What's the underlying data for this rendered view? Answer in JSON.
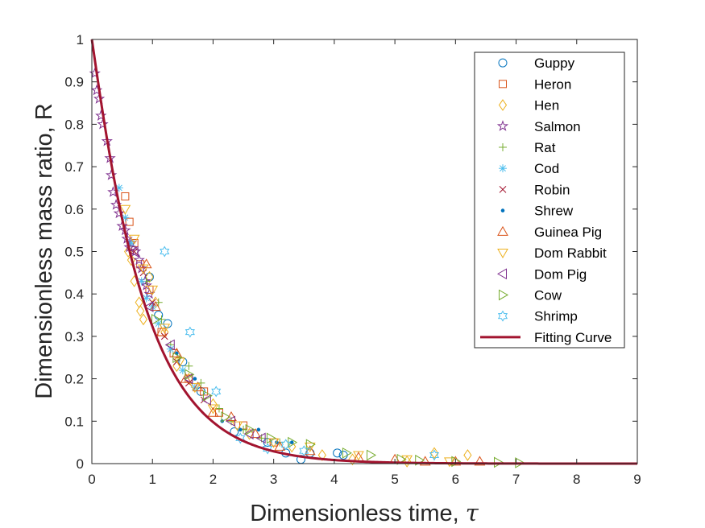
{
  "chart_data": {
    "type": "scatter",
    "title": "",
    "xlabel": "Dimensionless time, ",
    "xlabel_symbol": "τ",
    "ylabel": "Dimensionless mass ratio, R",
    "xlim": [
      0,
      9
    ],
    "ylim": [
      0,
      1
    ],
    "xticks": [
      "0",
      "1",
      "2",
      "3",
      "4",
      "5",
      "6",
      "7",
      "8",
      "9"
    ],
    "yticks": [
      "0",
      "0.1",
      "0.2",
      "0.3",
      "0.4",
      "0.5",
      "0.6",
      "0.7",
      "0.8",
      "0.9",
      "1"
    ],
    "grid": false,
    "legend_position": "top-right",
    "series": [
      {
        "name": "Guppy",
        "marker": "circle",
        "color": "#0072BD",
        "points": [
          [
            0.95,
            0.44
          ],
          [
            1.1,
            0.35
          ],
          [
            1.25,
            0.33
          ],
          [
            1.5,
            0.24
          ],
          [
            1.8,
            0.17
          ],
          [
            2.35,
            0.075
          ],
          [
            2.9,
            0.05
          ],
          [
            3.2,
            0.025
          ],
          [
            3.45,
            0.01
          ],
          [
            3.6,
            0.025
          ],
          [
            4.05,
            0.025
          ],
          [
            4.15,
            0.02
          ]
        ]
      },
      {
        "name": "Heron",
        "marker": "square",
        "color": "#D95319",
        "points": [
          [
            0.55,
            0.63
          ],
          [
            0.62,
            0.57
          ],
          [
            0.7,
            0.52
          ],
          [
            0.8,
            0.47
          ],
          [
            0.95,
            0.41
          ],
          [
            1.15,
            0.31
          ],
          [
            1.35,
            0.26
          ],
          [
            1.6,
            0.2
          ],
          [
            1.85,
            0.17
          ],
          [
            2.1,
            0.12
          ],
          [
            2.5,
            0.09
          ],
          [
            3.0,
            0.05
          ]
        ]
      },
      {
        "name": "Hen",
        "marker": "diamond",
        "color": "#EDB120",
        "points": [
          [
            0.6,
            0.5
          ],
          [
            0.65,
            0.48
          ],
          [
            0.7,
            0.43
          ],
          [
            0.78,
            0.38
          ],
          [
            0.8,
            0.36
          ],
          [
            0.85,
            0.34
          ],
          [
            0.95,
            0.44
          ],
          [
            1.05,
            0.38
          ],
          [
            1.2,
            0.31
          ],
          [
            1.4,
            0.23
          ],
          [
            1.6,
            0.2
          ],
          [
            2.0,
            0.14
          ],
          [
            2.6,
            0.07
          ],
          [
            3.3,
            0.04
          ],
          [
            3.8,
            0.02
          ],
          [
            4.3,
            0.01
          ],
          [
            5.2,
            0.005
          ],
          [
            5.65,
            0.025
          ],
          [
            6.2,
            0.02
          ]
        ]
      },
      {
        "name": "Salmon",
        "marker": "star",
        "color": "#7E2F8E",
        "points": [
          [
            0.05,
            0.92
          ],
          [
            0.08,
            0.88
          ],
          [
            0.12,
            0.86
          ],
          [
            0.15,
            0.82
          ],
          [
            0.18,
            0.8
          ],
          [
            0.25,
            0.76
          ],
          [
            0.3,
            0.72
          ],
          [
            0.32,
            0.68
          ],
          [
            0.35,
            0.64
          ],
          [
            0.4,
            0.61
          ],
          [
            0.45,
            0.59
          ],
          [
            0.5,
            0.56
          ],
          [
            0.55,
            0.55
          ],
          [
            0.58,
            0.53
          ],
          [
            0.62,
            0.51
          ],
          [
            0.65,
            0.52
          ],
          [
            0.72,
            0.5
          ],
          [
            0.78,
            0.48
          ],
          [
            0.82,
            0.46
          ],
          [
            0.88,
            0.43
          ],
          [
            0.9,
            0.42
          ],
          [
            0.95,
            0.4
          ]
        ]
      },
      {
        "name": "Rat",
        "marker": "plus",
        "color": "#77AC30",
        "points": [
          [
            0.9,
            0.43
          ],
          [
            1.0,
            0.37
          ],
          [
            1.1,
            0.38
          ],
          [
            1.15,
            0.34
          ],
          [
            1.3,
            0.28
          ],
          [
            1.45,
            0.25
          ],
          [
            1.6,
            0.23
          ],
          [
            1.8,
            0.19
          ],
          [
            2.1,
            0.13
          ],
          [
            2.3,
            0.1
          ],
          [
            2.5,
            0.08
          ],
          [
            2.8,
            0.06
          ],
          [
            3.1,
            0.05
          ]
        ]
      },
      {
        "name": "Cod",
        "marker": "asterisk",
        "color": "#4DBEEE",
        "points": [
          [
            0.45,
            0.65
          ],
          [
            0.55,
            0.58
          ],
          [
            0.65,
            0.52
          ],
          [
            0.82,
            0.43
          ],
          [
            0.9,
            0.39
          ],
          [
            1.0,
            0.37
          ],
          [
            1.1,
            0.33
          ],
          [
            1.3,
            0.27
          ],
          [
            1.5,
            0.22
          ],
          [
            1.7,
            0.18
          ]
        ]
      },
      {
        "name": "Robin",
        "marker": "cross",
        "color": "#A2142F",
        "points": [
          [
            0.7,
            0.5
          ],
          [
            0.85,
            0.45
          ],
          [
            1.0,
            0.38
          ],
          [
            1.2,
            0.3
          ],
          [
            1.4,
            0.24
          ],
          [
            1.6,
            0.19
          ],
          [
            1.85,
            0.15
          ]
        ]
      },
      {
        "name": "Shrew",
        "marker": "dot",
        "color": "#0072BD",
        "points": [
          [
            1.4,
            0.26
          ],
          [
            1.7,
            0.2
          ],
          [
            2.15,
            0.1
          ],
          [
            2.45,
            0.08
          ],
          [
            2.75,
            0.08
          ],
          [
            3.05,
            0.05
          ],
          [
            3.3,
            0.05
          ]
        ]
      },
      {
        "name": "Guinea Pig",
        "marker": "triangle-up",
        "color": "#D95319",
        "points": [
          [
            0.9,
            0.47
          ],
          [
            1.05,
            0.37
          ],
          [
            1.15,
            0.31
          ],
          [
            1.4,
            0.26
          ],
          [
            1.55,
            0.2
          ],
          [
            1.75,
            0.18
          ],
          [
            2.0,
            0.12
          ],
          [
            2.3,
            0.11
          ],
          [
            2.7,
            0.07
          ],
          [
            3.1,
            0.04
          ],
          [
            3.6,
            0.03
          ],
          [
            4.4,
            0.015
          ],
          [
            5.0,
            0.01
          ],
          [
            5.5,
            0.005
          ],
          [
            6.0,
            0.005
          ],
          [
            6.4,
            0.005
          ]
        ]
      },
      {
        "name": "Dom Rabbit",
        "marker": "triangle-down",
        "color": "#EDB120",
        "points": [
          [
            0.55,
            0.6
          ],
          [
            0.7,
            0.53
          ],
          [
            0.85,
            0.46
          ],
          [
            1.0,
            0.41
          ],
          [
            1.2,
            0.32
          ],
          [
            1.45,
            0.24
          ],
          [
            1.7,
            0.18
          ],
          [
            2.0,
            0.13
          ],
          [
            2.4,
            0.09
          ],
          [
            3.0,
            0.05
          ],
          [
            3.6,
            0.04
          ],
          [
            4.4,
            0.02
          ],
          [
            5.2,
            0.01
          ],
          [
            5.9,
            0.005
          ]
        ]
      },
      {
        "name": "Dom Pig",
        "marker": "triangle-left",
        "color": "#7E2F8E",
        "points": [
          [
            0.7,
            0.5
          ],
          [
            0.95,
            0.37
          ],
          [
            1.3,
            0.28
          ],
          [
            1.6,
            0.2
          ],
          [
            1.9,
            0.15
          ],
          [
            2.3,
            0.1
          ],
          [
            2.6,
            0.07
          ],
          [
            2.8,
            0.06
          ]
        ]
      },
      {
        "name": "Cow",
        "marker": "triangle-right",
        "color": "#77AC30",
        "points": [
          [
            1.05,
            0.34
          ],
          [
            1.4,
            0.25
          ],
          [
            1.6,
            0.21
          ],
          [
            1.9,
            0.16
          ],
          [
            2.2,
            0.11
          ],
          [
            2.6,
            0.08
          ],
          [
            2.95,
            0.06
          ],
          [
            3.3,
            0.05
          ],
          [
            3.6,
            0.045
          ],
          [
            4.2,
            0.025
          ],
          [
            4.6,
            0.02
          ],
          [
            5.1,
            0.01
          ],
          [
            5.4,
            0.008
          ],
          [
            6.0,
            0.005
          ],
          [
            6.7,
            0.003
          ],
          [
            7.05,
            0.002
          ]
        ]
      },
      {
        "name": "Shrimp",
        "marker": "hexagram",
        "color": "#4DBEEE",
        "points": [
          [
            1.2,
            0.5
          ],
          [
            1.62,
            0.31
          ],
          [
            2.05,
            0.17
          ],
          [
            2.45,
            0.06
          ],
          [
            2.9,
            0.035
          ],
          [
            3.2,
            0.045
          ],
          [
            3.5,
            0.03
          ],
          [
            5.65,
            0.02
          ]
        ]
      },
      {
        "name": "Fitting Curve",
        "marker": "line",
        "color": "#A2142F",
        "function": "exp(-1.13*x^1.04)",
        "domain": [
          0,
          9
        ]
      }
    ]
  }
}
